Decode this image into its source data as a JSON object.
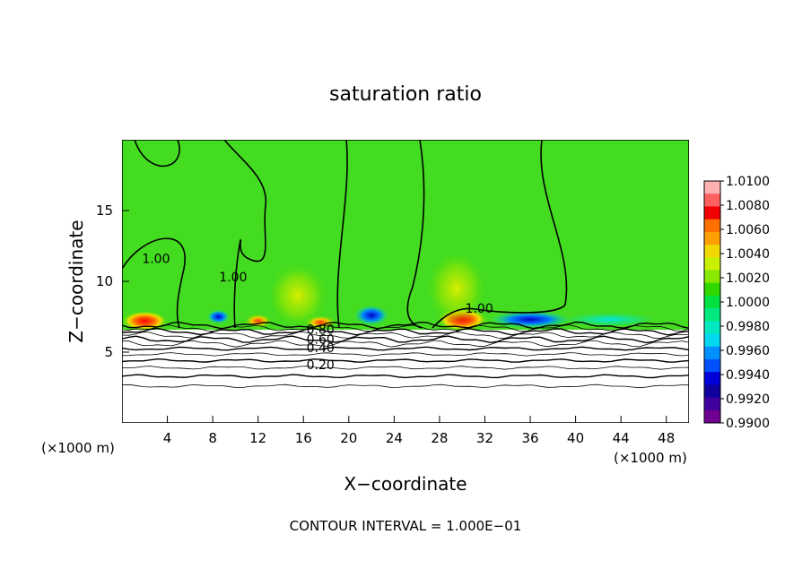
{
  "chart_data": {
    "type": "heatmap",
    "title": "saturation ratio",
    "xlabel": "X−coordinate",
    "ylabel": "Z−coordinate",
    "x_unit": "(×1000 m)",
    "x_unit_right": "(×1000 m)",
    "xlim": [
      0,
      50
    ],
    "ylim": [
      0,
      20
    ],
    "x_ticks": [
      4,
      8,
      12,
      16,
      20,
      24,
      28,
      32,
      36,
      40,
      44,
      48
    ],
    "y_ticks": [
      5,
      10,
      15
    ],
    "colorbar": {
      "min": 0.99,
      "max": 1.01,
      "labels": [
        "1.0100",
        "1.0080",
        "1.0060",
        "1.0040",
        "1.0020",
        "1.0000",
        "0.9980",
        "0.9960",
        "0.9940",
        "0.9920",
        "0.9900"
      ],
      "colors": [
        "#ffb0b0",
        "#ff6060",
        "#f00000",
        "#ff7000",
        "#ffa000",
        "#f0d800",
        "#c8f000",
        "#88e800",
        "#30d800",
        "#00e040",
        "#00e880",
        "#00e8c0",
        "#00d8f0",
        "#0090ff",
        "#0050ff",
        "#0000d8",
        "#1000a0",
        "#4000a0",
        "#700090"
      ]
    },
    "contour_interval_label": "CONTOUR INTERVAL = 1.000E−01",
    "contour_labels": [
      {
        "text": "1.00",
        "x": 3.0,
        "y": 11.3
      },
      {
        "text": "1.00",
        "x": 9.8,
        "y": 10.0
      },
      {
        "text": "1.00",
        "x": 31.5,
        "y": 7.8
      },
      {
        "text": "0.80",
        "x": 17.5,
        "y": 6.3
      },
      {
        "text": "0.60",
        "x": 17.5,
        "y": 5.6
      },
      {
        "text": "0.40",
        "x": 17.5,
        "y": 5.0
      },
      {
        "text": "0.20",
        "x": 17.5,
        "y": 3.8
      }
    ],
    "contour_levels_below": [
      6.9,
      6.7,
      6.45,
      6.2,
      5.9,
      5.6,
      5.25,
      4.85,
      4.4,
      3.9,
      3.3,
      2.6
    ],
    "hotspots": [
      {
        "x": 2.0,
        "y": 7.2,
        "rx": 2.0,
        "ry": 0.7,
        "level": "high"
      },
      {
        "x": 30.0,
        "y": 7.3,
        "rx": 2.2,
        "ry": 0.8,
        "level": "high"
      },
      {
        "x": 17.5,
        "y": 7.1,
        "rx": 1.4,
        "ry": 0.5,
        "level": "mid"
      },
      {
        "x": 12.0,
        "y": 7.2,
        "rx": 1.2,
        "ry": 0.5,
        "level": "mid"
      },
      {
        "x": 15.5,
        "y": 9.0,
        "rx": 2.5,
        "ry": 2.2,
        "level": "low"
      },
      {
        "x": 29.5,
        "y": 9.5,
        "rx": 2.5,
        "ry": 2.5,
        "level": "low"
      },
      {
        "x": 36.0,
        "y": 7.3,
        "rx": 3.5,
        "ry": 0.6,
        "level": "dry"
      },
      {
        "x": 22.0,
        "y": 7.6,
        "rx": 1.5,
        "ry": 0.7,
        "level": "dry"
      },
      {
        "x": 8.5,
        "y": 7.5,
        "rx": 1.0,
        "ry": 0.5,
        "level": "dry"
      },
      {
        "x": 43.0,
        "y": 7.3,
        "rx": 4.0,
        "ry": 0.5,
        "level": "wet"
      }
    ]
  }
}
